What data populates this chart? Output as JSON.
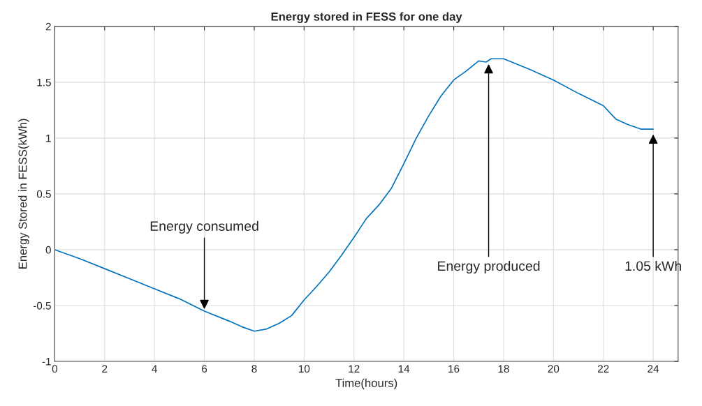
{
  "chart_data": {
    "type": "line",
    "title": "Energy stored in FESS for one day",
    "xlabel": "Time(hours)",
    "ylabel": "Energy Stored in FESS(kWh)",
    "xlim": [
      0,
      25
    ],
    "xticks": [
      0,
      2,
      4,
      6,
      8,
      10,
      12,
      14,
      16,
      18,
      20,
      22,
      24
    ],
    "ylim": [
      -1,
      2
    ],
    "yticks": [
      -1,
      -0.5,
      0,
      0.5,
      1,
      1.5,
      2
    ],
    "grid": true,
    "series": [
      {
        "color": "#0072bd",
        "x": [
          0,
          1,
          2,
          3,
          4,
          5,
          6,
          7,
          7.5,
          8,
          8.5,
          9,
          9.5,
          10,
          10.5,
          11,
          11.5,
          12,
          12.5,
          13,
          13.5,
          14,
          14.5,
          15,
          15.5,
          16,
          16.5,
          17,
          17.3,
          17.5,
          18,
          19,
          20,
          21,
          22,
          22.5,
          23,
          23.5,
          24
        ],
        "values": [
          0,
          -0.08,
          -0.17,
          -0.26,
          -0.35,
          -0.44,
          -0.55,
          -0.64,
          -0.69,
          -0.73,
          -0.71,
          -0.66,
          -0.59,
          -0.45,
          -0.33,
          -0.2,
          -0.05,
          0.11,
          0.28,
          0.4,
          0.55,
          0.77,
          1.0,
          1.2,
          1.38,
          1.52,
          1.6,
          1.69,
          1.68,
          1.71,
          1.71,
          1.62,
          1.52,
          1.4,
          1.29,
          1.17,
          1.12,
          1.08,
          1.08
        ]
      }
    ],
    "annotations": [
      {
        "text": "Energy consumed",
        "x": 6,
        "y": -0.55
      },
      {
        "text": "Energy produced",
        "x": 17.4,
        "y": 1.68
      },
      {
        "text": "1.05 kWh",
        "x": 24,
        "y": 1.05
      }
    ]
  }
}
